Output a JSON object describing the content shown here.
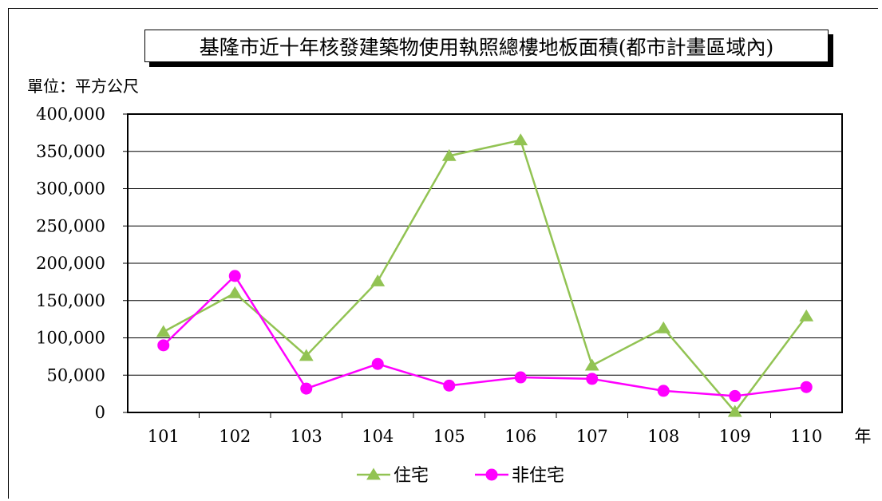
{
  "chart_data": {
    "type": "line",
    "title": "基隆市近十年核發建築物使用執照總樓地板面積(都市計畫區域內)",
    "unit_label": "單位：平方公尺",
    "xlabel": "年",
    "categories": [
      "101",
      "102",
      "103",
      "104",
      "105",
      "106",
      "107",
      "108",
      "109",
      "110"
    ],
    "ylim": [
      0,
      400000
    ],
    "y_ticks": [
      "0",
      "50,000",
      "100,000",
      "150,000",
      "200,000",
      "250,000",
      "300,000",
      "350,000",
      "400,000"
    ],
    "grid": true,
    "legend_position": "bottom",
    "series": [
      {
        "name": "住宅",
        "color": "#92c353",
        "marker": "triangle",
        "values": [
          108000,
          160000,
          76000,
          176000,
          344000,
          365000,
          63000,
          113000,
          1000,
          129000
        ]
      },
      {
        "name": "非住宅",
        "color": "#ff00ff",
        "marker": "circle",
        "values": [
          90000,
          183000,
          32000,
          65000,
          36000,
          47000,
          45000,
          29000,
          22000,
          34000
        ]
      }
    ]
  }
}
